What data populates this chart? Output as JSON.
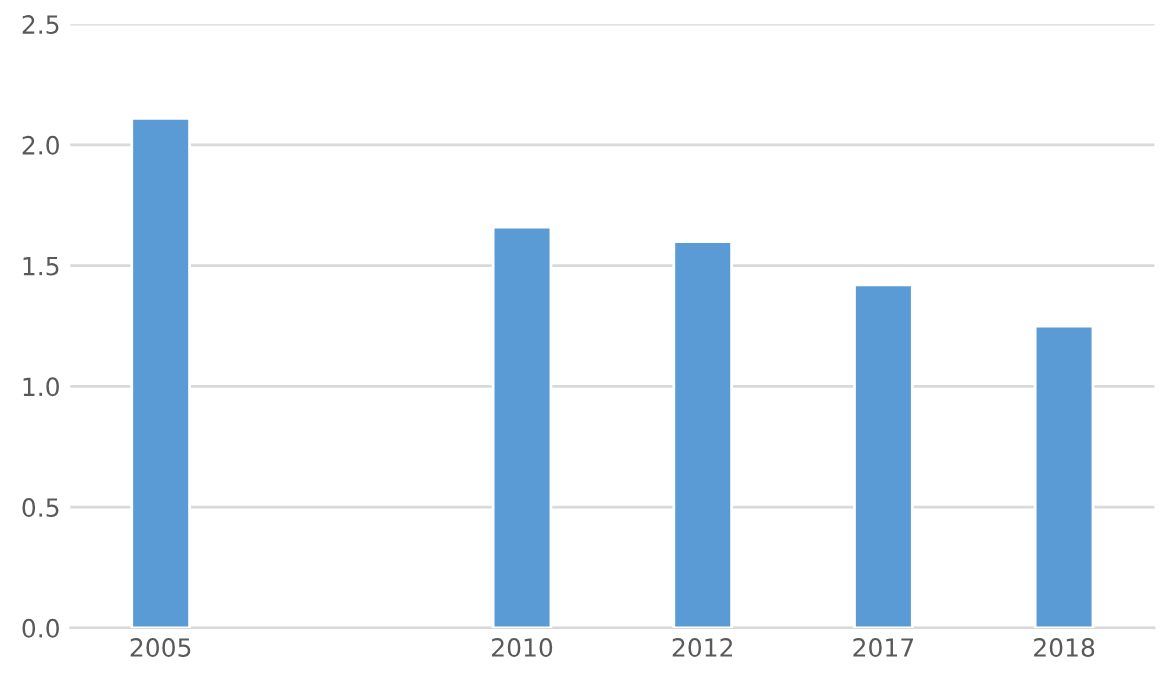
{
  "chart_data": {
    "type": "bar",
    "categories": [
      "2005",
      null,
      "2010",
      "2012",
      "2017",
      "2018"
    ],
    "values": [
      2.11,
      null,
      1.66,
      1.6,
      1.42,
      1.25
    ],
    "color": "#5b9bd5",
    "ylim": [
      0,
      2.5
    ],
    "yticks": [
      {
        "value": 0,
        "label": "0.0"
      },
      {
        "value": 0.5,
        "label": "0.5"
      },
      {
        "value": 1,
        "label": "1.0"
      },
      {
        "value": 1.5,
        "label": "1.5"
      },
      {
        "value": 2,
        "label": "2.0"
      },
      {
        "value": 2.5,
        "label": "2.5"
      }
    ],
    "grid": "y"
  }
}
